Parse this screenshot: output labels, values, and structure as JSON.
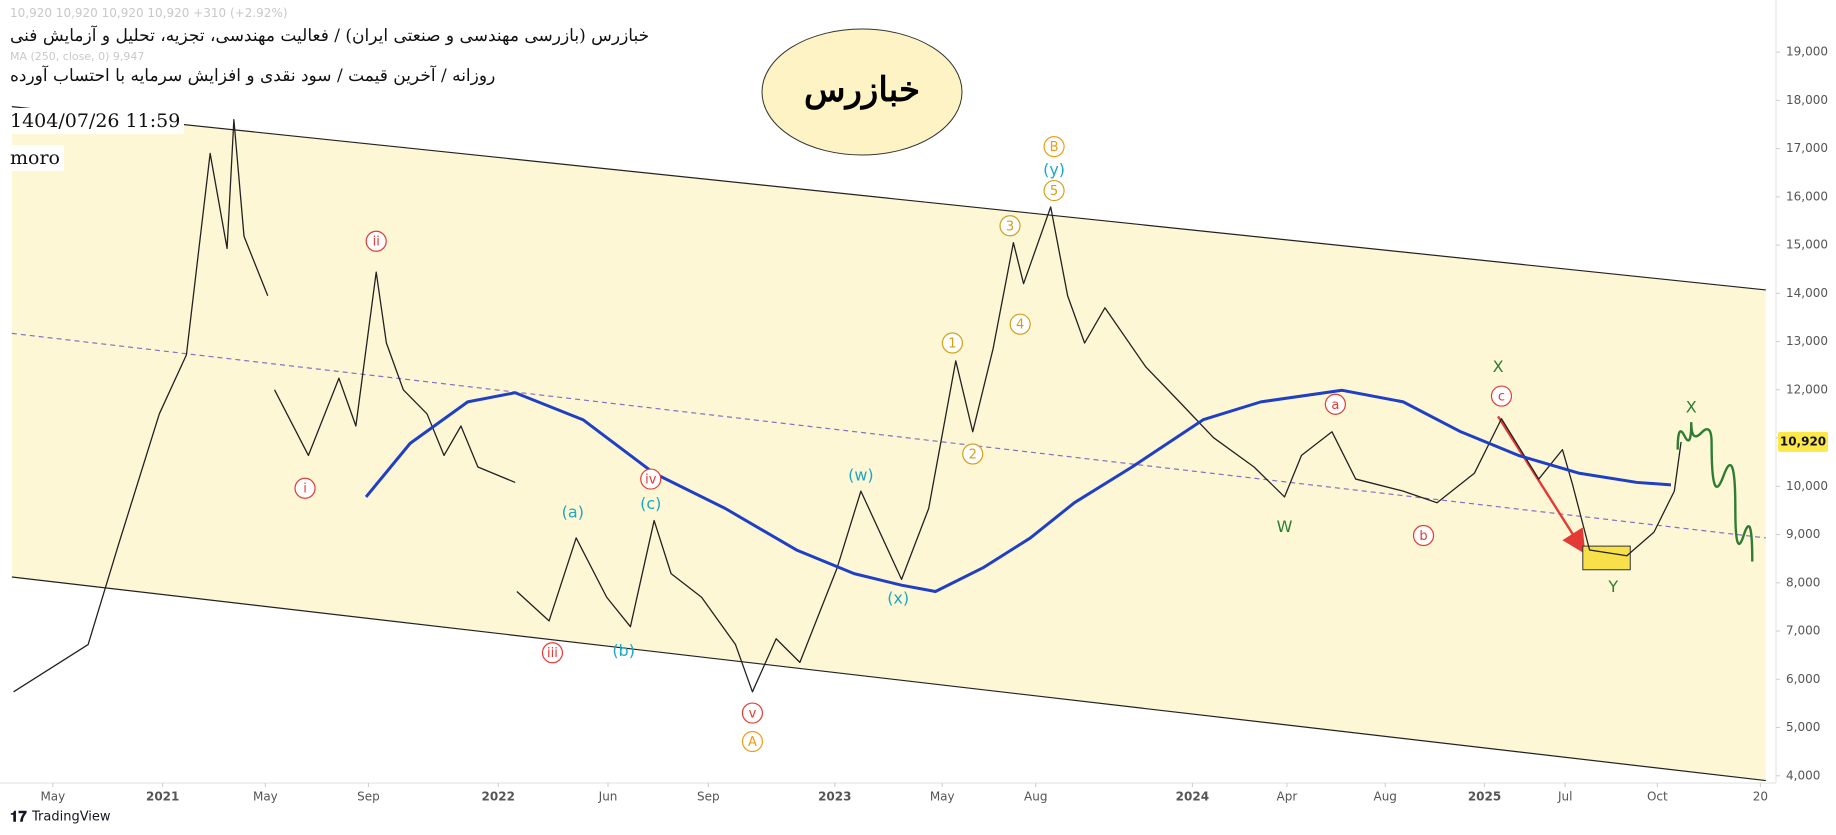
{
  "chart_data": {
    "type": "line",
    "title": "خبازرس (بازرسی مهندسی و صنعتی ایران) / فعالیت مهندسی، تجزیه، تحلیل و آزمایش فنی",
    "subtitle": "روزانه / آخرین قیمت / سود نقدی و افزایش سرمایه با احتساب آورده",
    "ohlc_text": "10,920  10,920  10,920  10,920  +310 (+2.92%)",
    "indicator_text": "MA (250, close, 0)  9,947",
    "timestamp": "1404/07/26 11:59",
    "author": "moro",
    "symbol": "خبازرس",
    "brand": "TradingView",
    "xlim": [
      2020.52,
      2025.76
    ],
    "ylim": [
      3850,
      20080
    ],
    "grid": false,
    "channel_fill": "#fdf7d6",
    "xticks": [
      {
        "value": 2020.676,
        "label": "May"
      },
      2021,
      {
        "value": 2021.303,
        "label": "May"
      },
      {
        "value": 2021.607,
        "label": "Sep"
      },
      {
        "value": 2021.99,
        "label": "2022"
      },
      {
        "value": 2022.314,
        "label": "Jun"
      },
      {
        "value": 2022.61,
        "label": "Sep"
      },
      {
        "value": 2022.983,
        "label": "2023"
      },
      {
        "value": 2023.3,
        "label": "May"
      },
      {
        "value": 2023.576,
        "label": "Aug"
      },
      {
        "value": 2024.038,
        "label": "2024"
      },
      {
        "value": 2024.317,
        "label": "Apr"
      },
      {
        "value": 2024.607,
        "label": "Aug"
      },
      {
        "value": 2024.9,
        "label": "2025"
      },
      {
        "value": 2025.138,
        "label": "Jul"
      },
      {
        "value": 2025.41,
        "label": "Oct"
      },
      {
        "value": 2025.714,
        "label": "20"
      }
    ],
    "yticks": [
      {
        "value": 4000,
        "label": "4,000"
      },
      {
        "value": 5000,
        "label": "5,000"
      },
      {
        "value": 6000,
        "label": "6,000"
      },
      {
        "value": 7000,
        "label": "7,000"
      },
      {
        "value": 8000,
        "label": "8,000"
      },
      {
        "value": 9000,
        "label": "9,000"
      },
      {
        "value": 10000,
        "label": "10,000"
      },
      {
        "value": 11000,
        "label": "11,000"
      },
      {
        "value": 12000,
        "label": "12,000"
      },
      {
        "value": 13000,
        "label": "13,000"
      },
      {
        "value": 14000,
        "label": "14,000"
      },
      {
        "value": 15000,
        "label": "15,000"
      },
      {
        "value": 16000,
        "label": "16,000"
      },
      {
        "value": 17000,
        "label": "17,000"
      },
      {
        "value": 18000,
        "label": "18,000"
      },
      {
        "value": 19000,
        "label": "19,000"
      }
    ],
    "last_price": {
      "value": 10920,
      "label": "10,920"
    },
    "series": [
      {
        "name": "Price",
        "color": "#222222",
        "width": 1.3,
        "x": [
          2020.56,
          2020.78,
          2020.87,
          2020.99,
          2021.07,
          2021.14,
          2021.19,
          2021.21,
          2021.24,
          2021.31,
          2021.32,
          2021.33,
          2021.43,
          2021.52,
          2021.57,
          2021.63,
          2021.66,
          2021.71,
          2021.78,
          2021.83,
          2021.88,
          2021.93,
          2022.04,
          2022.042,
          2022.045,
          2022.14,
          2022.22,
          2022.31,
          2022.38,
          2022.45,
          2022.5,
          2022.59,
          2022.69,
          2022.74,
          2022.81,
          2022.88,
          2022.99,
          2023.06,
          2023.18,
          2023.26,
          2023.34,
          2023.39,
          2023.45,
          2023.51,
          2023.54,
          2023.62,
          2023.67,
          2023.72,
          2023.78,
          2023.9,
          2024.0,
          2024.1,
          2024.22,
          2024.31,
          2024.36,
          2024.45,
          2024.52,
          2024.66,
          2024.76,
          2024.87,
          2024.95,
          2025.06,
          2025.13,
          2025.16,
          2025.21,
          2025.32,
          2025.4,
          2025.46,
          2025.48
        ],
        "values": [
          5740,
          6720,
          8800,
          11500,
          12725,
          16900,
          14930,
          17600,
          15180,
          13950,
          null,
          12000,
          10640,
          12240,
          11250,
          14440,
          12970,
          12000,
          11500,
          10640,
          11250,
          10400,
          10080,
          null,
          7820,
          7210,
          8930,
          7700,
          7090,
          9290,
          8190,
          7700,
          6720,
          5740,
          6840,
          6350,
          8310,
          9900,
          8070,
          9540,
          12600,
          11130,
          12850,
          15050,
          14200,
          15790,
          13950,
          12970,
          13700,
          12480,
          11750,
          11010,
          10400,
          9780,
          10640,
          11130,
          10150,
          9900,
          9660,
          10270,
          11400,
          10150,
          10760,
          10030,
          8680,
          8560,
          9050,
          9900,
          10920
        ]
      },
      {
        "name": "MA",
        "color": "#1f3fc4",
        "width": 3,
        "x": [
          2021.6,
          2021.73,
          2021.9,
          2022.04,
          2022.24,
          2022.45,
          2022.66,
          2022.87,
          2023.04,
          2023.18,
          2023.28,
          2023.42,
          2023.56,
          2023.69,
          2023.86,
          2024.07,
          2024.24,
          2024.48,
          2024.66,
          2024.83,
          2025.0,
          2025.18,
          2025.35,
          2025.45
        ],
        "values": [
          9780,
          10890,
          11750,
          11940,
          11380,
          10270,
          9540,
          8680,
          8190,
          7950,
          7820,
          8310,
          8930,
          9660,
          10400,
          11380,
          11750,
          11990,
          11750,
          11130,
          10640,
          10270,
          10080,
          10030
        ]
      }
    ],
    "drawings": [
      {
        "color": "#222222",
        "x": [
          2020.555,
          2025.73
        ],
        "y": [
          17870,
          14070
        ]
      },
      {
        "color": "#222222",
        "x": [
          2020.555,
          2025.73
        ],
        "y": [
          8120,
          3900
        ]
      },
      {
        "color": "#8a6fc0",
        "dashed": true,
        "x": [
          2020.555,
          2025.73
        ],
        "y": [
          13170,
          8930
        ]
      },
      {
        "color": "#2e7d32",
        "curve": true,
        "x": [
          2025.47,
          2025.51,
          2025.57,
          2025.64,
          2025.69
        ],
        "y": [
          10760,
          11330,
          10890,
          9540,
          8440
        ]
      },
      {
        "color": "#e53935",
        "arrow": true,
        "x": [
          2024.94,
          2025.19
        ],
        "y": [
          11450,
          8680
        ]
      }
    ],
    "boxes": [
      {
        "color": "#f7e04a",
        "x": [
          2025.19,
          2025.33
        ],
        "y": [
          8760,
          8270
        ]
      }
    ],
    "annotations": [
      {
        "text": "i",
        "x": 2021.42,
        "y": 9960,
        "color": "#e53935",
        "circled": true
      },
      {
        "text": "ii",
        "x": 2021.63,
        "y": 15080,
        "color": "#e53935",
        "circled": true
      },
      {
        "text": "iii",
        "x": 2022.15,
        "y": 6550,
        "color": "#e53935",
        "circled": true
      },
      {
        "text": "iv",
        "x": 2022.44,
        "y": 10150,
        "color": "#e53935",
        "circled": true
      },
      {
        "text": "v",
        "x": 2022.74,
        "y": 5300,
        "color": "#e53935",
        "circled": true
      },
      {
        "text": "A",
        "x": 2022.74,
        "y": 4710,
        "color": "#f39c12",
        "circled": true
      },
      {
        "text": "(a)",
        "x": 2022.21,
        "y": 9470,
        "color": "#1ea7c5",
        "circled": false
      },
      {
        "text": "(b)",
        "x": 2022.36,
        "y": 6600,
        "color": "#1ea7c5",
        "circled": false
      },
      {
        "text": "(c)",
        "x": 2022.44,
        "y": 9640,
        "color": "#1ea7c5",
        "circled": false
      },
      {
        "text": "(w)",
        "x": 2023.06,
        "y": 10230,
        "color": "#1ea7c5",
        "circled": false
      },
      {
        "text": "(x)",
        "x": 2023.17,
        "y": 7680,
        "color": "#1ea7c5",
        "circled": false
      },
      {
        "text": "1",
        "x": 2023.33,
        "y": 12970,
        "color": "#d4a017",
        "circled": true
      },
      {
        "text": "2",
        "x": 2023.39,
        "y": 10670,
        "color": "#d4a017",
        "circled": true
      },
      {
        "text": "3",
        "x": 2023.5,
        "y": 15400,
        "color": "#d4a017",
        "circled": true
      },
      {
        "text": "4",
        "x": 2023.53,
        "y": 13360,
        "color": "#d4a017",
        "circled": true
      },
      {
        "text": "5",
        "x": 2023.63,
        "y": 16130,
        "color": "#d4a017",
        "circled": true
      },
      {
        "text": "(y)",
        "x": 2023.63,
        "y": 16570,
        "color": "#1ea7c5",
        "circled": false
      },
      {
        "text": "B",
        "x": 2023.63,
        "y": 17040,
        "color": "#f39c12",
        "circled": true
      },
      {
        "text": "W",
        "x": 2024.31,
        "y": 9170,
        "color": "#2e7d32",
        "circled": false
      },
      {
        "text": "a",
        "x": 2024.46,
        "y": 11700,
        "color": "#e53935",
        "circled": true
      },
      {
        "text": "b",
        "x": 2024.72,
        "y": 8980,
        "color": "#e53935",
        "circled": true
      },
      {
        "text": "c",
        "x": 2024.95,
        "y": 11870,
        "color": "#e53935",
        "circled": true
      },
      {
        "text": "X",
        "x": 2024.94,
        "y": 12480,
        "color": "#2e7d32",
        "circled": false
      },
      {
        "text": "Y",
        "x": 2025.28,
        "y": 7920,
        "color": "#2e7d32",
        "circled": false
      },
      {
        "text": "X",
        "x": 2025.51,
        "y": 11640,
        "color": "#2e7d32",
        "circled": false
      }
    ]
  }
}
